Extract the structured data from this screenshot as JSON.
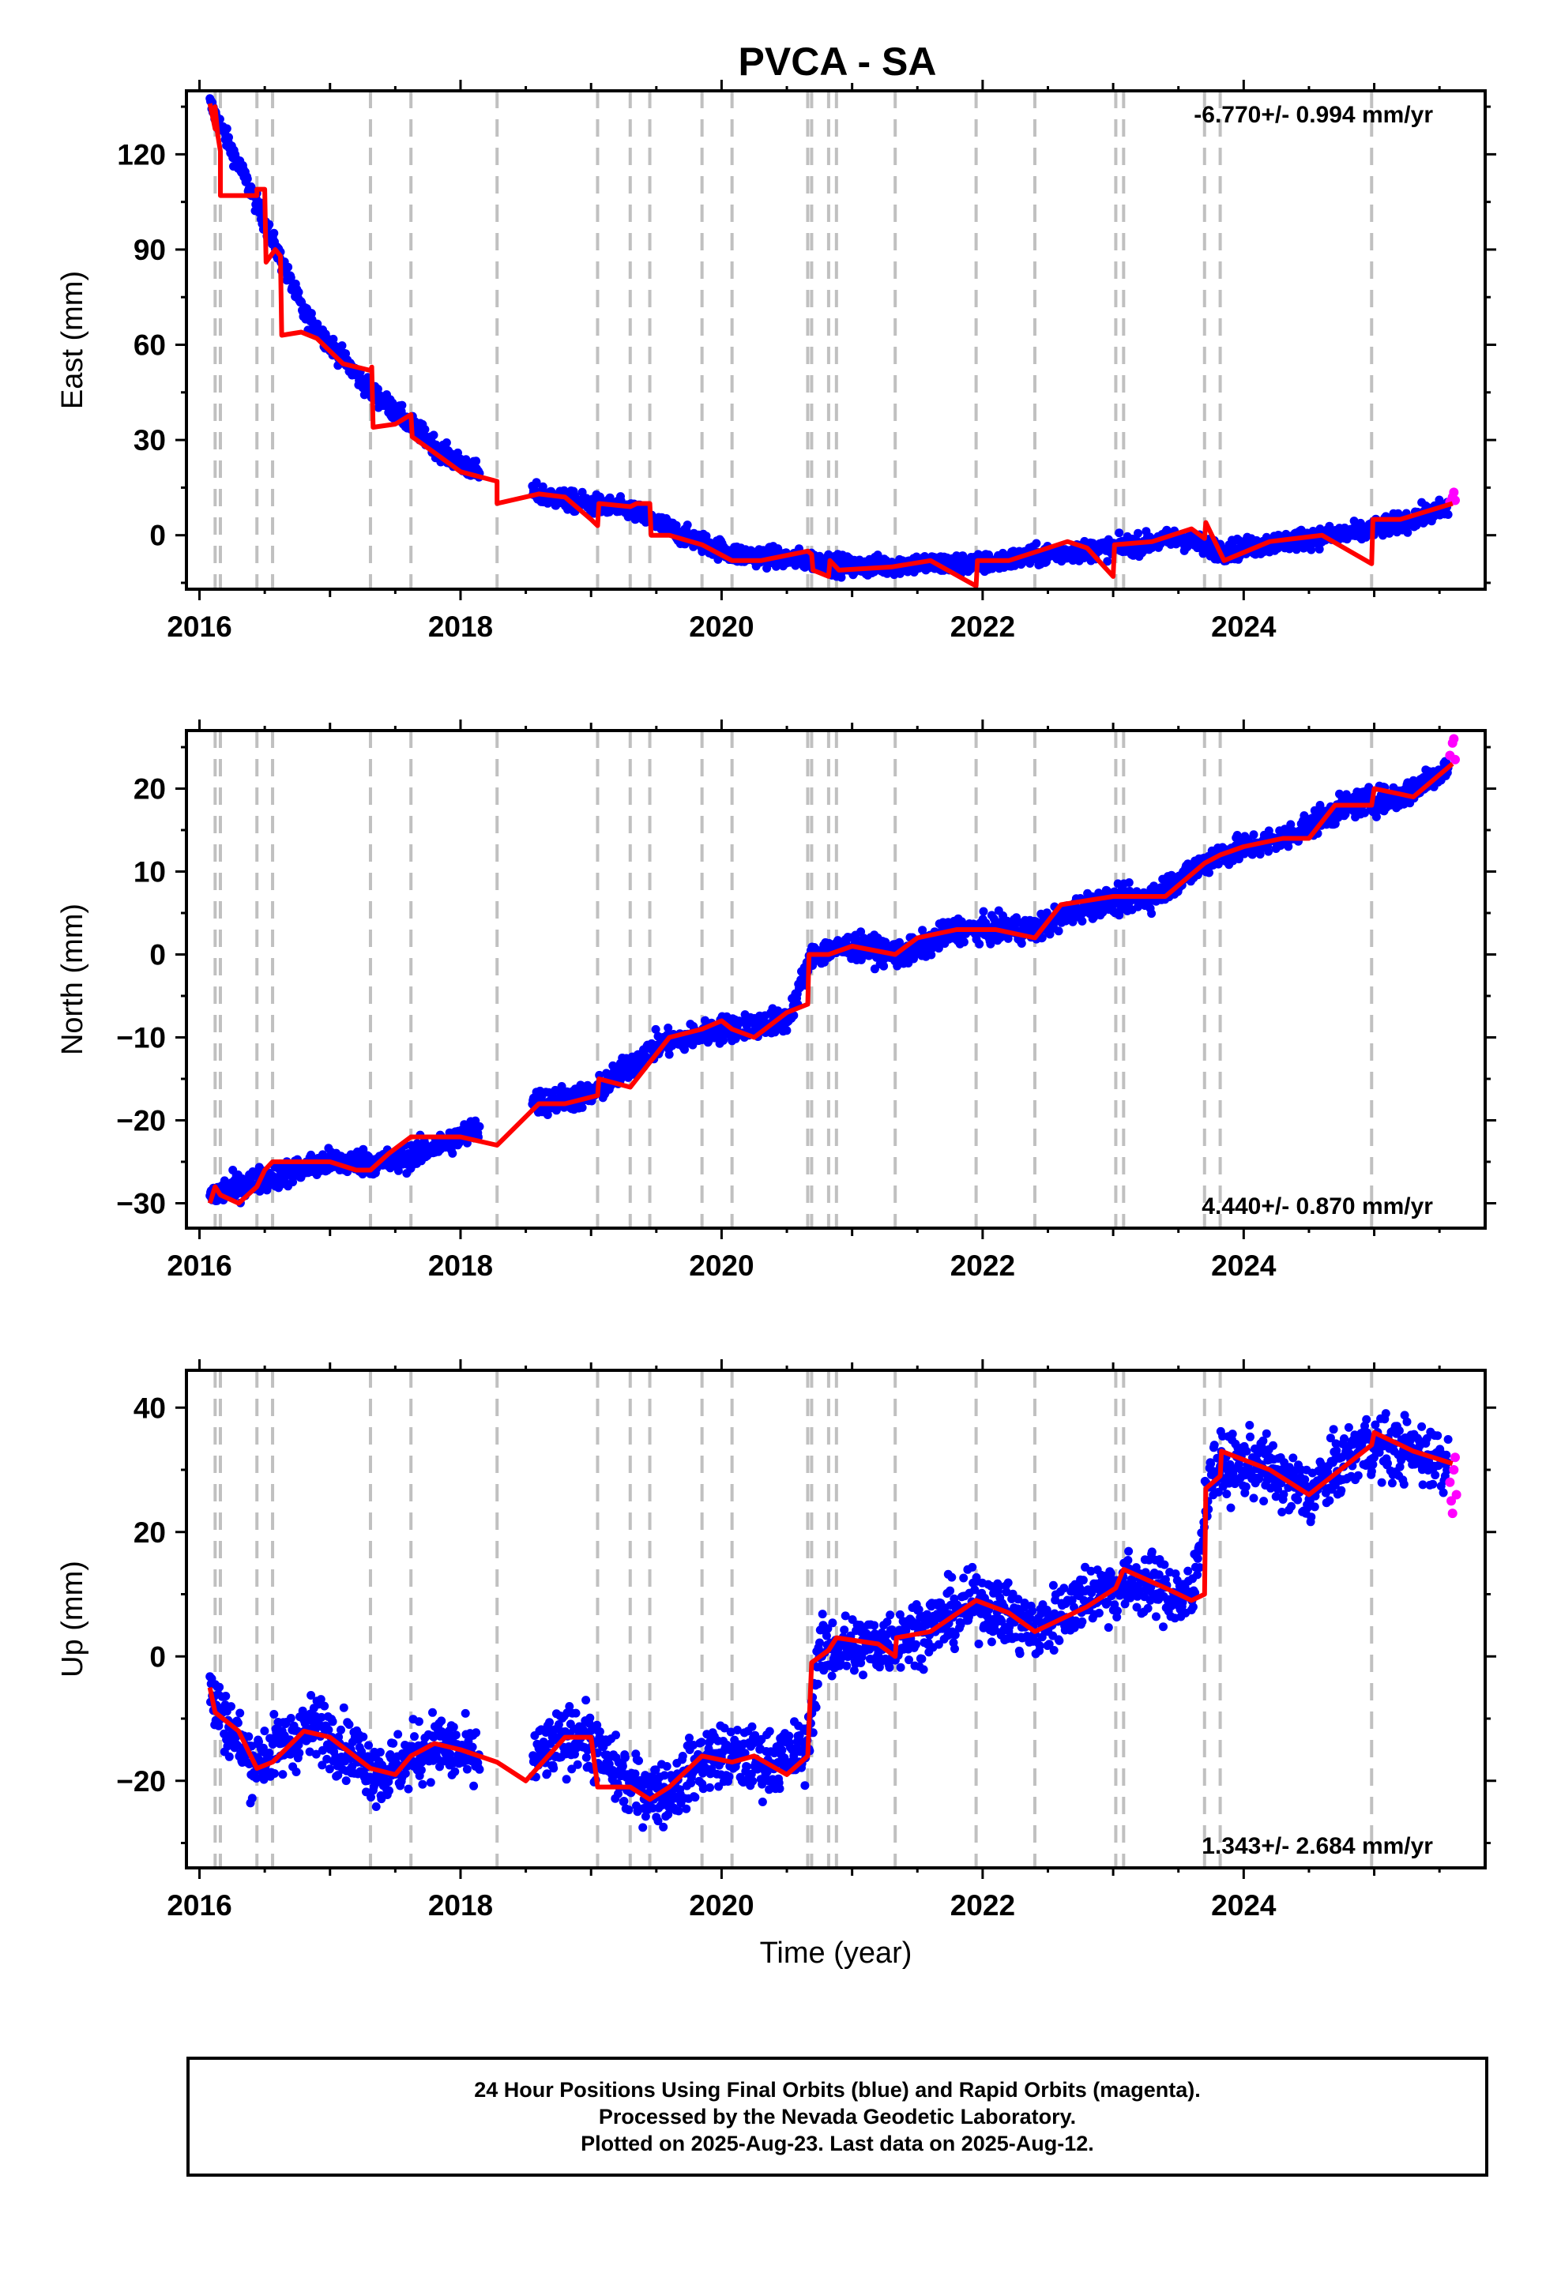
{
  "figure": {
    "title": "PVCA - SA",
    "xlabel": "Time (year)",
    "x_ticks": [
      "2016",
      "2018",
      "2020",
      "2022",
      "2024"
    ],
    "colors": {
      "final": "#0000ff",
      "rapid": "#ff00ff",
      "model": "#ff0000",
      "offset_lines": "#c0c0c0"
    }
  },
  "caption": {
    "line1": "24 Hour Positions Using Final Orbits (blue) and Rapid Orbits (magenta).",
    "line2": "Processed by the Nevada Geodetic Laboratory.",
    "line3": "Plotted on 2025-Aug-23. Last data on 2025-Aug-12."
  },
  "chart_data": [
    {
      "type": "scatter",
      "component": "east",
      "ylabel": "East (mm)",
      "rate_label": "-6.770+/- 0.994 mm/yr",
      "xlim": [
        2015.9,
        2025.85
      ],
      "ylim": [
        -17,
        140
      ],
      "y_ticks": [
        0,
        30,
        60,
        90,
        120
      ],
      "offset_epochs": [
        2016.12,
        2016.16,
        2016.44,
        2016.56,
        2017.31,
        2017.62,
        2018.28,
        2019.05,
        2019.3,
        2019.45,
        2019.85,
        2020.08,
        2020.66,
        2020.69,
        2020.82,
        2020.88,
        2021.33,
        2021.95,
        2022.4,
        2023.02,
        2023.08,
        2023.7,
        2023.82,
        2024.98
      ],
      "series": [
        {
          "name": "Final Orbits",
          "color": "#0000ff"
        },
        {
          "name": "Rapid Orbits",
          "color": "#ff00ff"
        },
        {
          "name": "Model",
          "color": "#ff0000"
        }
      ],
      "trend_knots": [
        [
          2016.08,
          136
        ],
        [
          2016.4,
          108
        ],
        [
          2016.8,
          70
        ],
        [
          2017.3,
          46
        ],
        [
          2017.9,
          25
        ],
        [
          2018.3,
          16
        ],
        [
          2018.8,
          11
        ],
        [
          2019.3,
          8
        ],
        [
          2019.7,
          0
        ],
        [
          2020.1,
          -6
        ],
        [
          2020.7,
          -8
        ],
        [
          2021.0,
          -10
        ],
        [
          2021.5,
          -9
        ],
        [
          2022.0,
          -9
        ],
        [
          2022.5,
          -6
        ],
        [
          2023.0,
          -4
        ],
        [
          2023.5,
          -1
        ],
        [
          2023.85,
          -5
        ],
        [
          2024.3,
          -2
        ],
        [
          2024.9,
          1
        ],
        [
          2025.2,
          4
        ],
        [
          2025.6,
          9
        ]
      ],
      "noise": 2.2,
      "rapid_points": [
        [
          2025.58,
          10.5
        ],
        [
          2025.6,
          12
        ],
        [
          2025.61,
          13.5
        ],
        [
          2025.62,
          11
        ]
      ],
      "model_path": [
        [
          2016.08,
          136
        ],
        [
          2016.12,
          128
        ],
        [
          2016.12,
          135
        ],
        [
          2016.14,
          126
        ],
        [
          2016.16,
          121
        ],
        [
          2016.16,
          107
        ],
        [
          2016.44,
          107
        ],
        [
          2016.44,
          109
        ],
        [
          2016.5,
          109
        ],
        [
          2016.51,
          86
        ],
        [
          2016.58,
          90
        ],
        [
          2016.62,
          88
        ],
        [
          2016.63,
          63
        ],
        [
          2016.78,
          64
        ],
        [
          2016.9,
          62
        ],
        [
          2017.0,
          58
        ],
        [
          2017.1,
          54
        ],
        [
          2017.3,
          52
        ],
        [
          2017.31,
          52
        ],
        [
          2017.32,
          53
        ],
        [
          2017.33,
          34
        ],
        [
          2017.5,
          35
        ],
        [
          2017.62,
          38
        ],
        [
          2017.63,
          31
        ],
        [
          2017.8,
          26
        ],
        [
          2018.0,
          20
        ],
        [
          2018.28,
          17
        ],
        [
          2018.28,
          10
        ],
        [
          2018.6,
          13
        ],
        [
          2018.8,
          12
        ],
        [
          2019.0,
          5
        ],
        [
          2019.05,
          3
        ],
        [
          2019.06,
          10
        ],
        [
          2019.3,
          9
        ],
        [
          2019.35,
          10
        ],
        [
          2019.45,
          10
        ],
        [
          2019.46,
          0
        ],
        [
          2019.6,
          0
        ],
        [
          2019.85,
          -3
        ],
        [
          2020.08,
          -8
        ],
        [
          2020.3,
          -8
        ],
        [
          2020.66,
          -5
        ],
        [
          2020.69,
          -6
        ],
        [
          2020.7,
          -11
        ],
        [
          2020.82,
          -13
        ],
        [
          2020.83,
          -8
        ],
        [
          2020.9,
          -11
        ],
        [
          2021.3,
          -10
        ],
        [
          2021.6,
          -8
        ],
        [
          2021.95,
          -16
        ],
        [
          2021.96,
          -8
        ],
        [
          2022.2,
          -8
        ],
        [
          2022.5,
          -4
        ],
        [
          2022.65,
          -2
        ],
        [
          2022.8,
          -4
        ],
        [
          2023.0,
          -13
        ],
        [
          2023.01,
          -3
        ],
        [
          2023.3,
          -2
        ],
        [
          2023.6,
          2
        ],
        [
          2023.7,
          -1
        ],
        [
          2023.71,
          4
        ],
        [
          2023.85,
          -8
        ],
        [
          2024.2,
          -2
        ],
        [
          2024.6,
          0
        ],
        [
          2024.98,
          -9
        ],
        [
          2024.99,
          5
        ],
        [
          2025.2,
          5
        ],
        [
          2025.6,
          10
        ]
      ]
    },
    {
      "type": "scatter",
      "component": "north",
      "ylabel": "North (mm)",
      "rate_label": "4.440+/- 0.870 mm/yr",
      "xlim": [
        2015.9,
        2025.85
      ],
      "ylim": [
        -33,
        27
      ],
      "y_ticks": [
        -30,
        -20,
        -10,
        0,
        10,
        20
      ],
      "offset_epochs": [
        2016.12,
        2016.16,
        2016.44,
        2016.56,
        2017.31,
        2017.62,
        2018.28,
        2019.05,
        2019.3,
        2019.45,
        2019.85,
        2020.08,
        2020.66,
        2020.69,
        2020.82,
        2020.88,
        2021.33,
        2021.95,
        2022.4,
        2023.02,
        2023.08,
        2023.7,
        2023.82,
        2024.98
      ],
      "series": [
        {
          "name": "Final Orbits",
          "color": "#0000ff"
        },
        {
          "name": "Rapid Orbits",
          "color": "#ff00ff"
        },
        {
          "name": "Model",
          "color": "#ff0000"
        }
      ],
      "trend_knots": [
        [
          2016.08,
          -29
        ],
        [
          2016.5,
          -27
        ],
        [
          2017.0,
          -25
        ],
        [
          2017.5,
          -25
        ],
        [
          2018.0,
          -22
        ],
        [
          2018.5,
          -18
        ],
        [
          2019.0,
          -17
        ],
        [
          2019.5,
          -11
        ],
        [
          2020.0,
          -9
        ],
        [
          2020.5,
          -8
        ],
        [
          2020.7,
          0
        ],
        [
          2021.0,
          1
        ],
        [
          2021.4,
          0
        ],
        [
          2021.8,
          3
        ],
        [
          2022.4,
          3
        ],
        [
          2022.8,
          6
        ],
        [
          2023.3,
          7
        ],
        [
          2023.8,
          12
        ],
        [
          2024.3,
          14
        ],
        [
          2024.8,
          18
        ],
        [
          2025.2,
          19
        ],
        [
          2025.6,
          23
        ]
      ],
      "noise": 1.1,
      "rapid_points": [
        [
          2025.58,
          24
        ],
        [
          2025.6,
          25.5
        ],
        [
          2025.61,
          26
        ],
        [
          2025.62,
          23.5
        ]
      ],
      "model_path": [
        [
          2016.08,
          -30
        ],
        [
          2016.12,
          -28
        ],
        [
          2016.16,
          -29
        ],
        [
          2016.3,
          -30
        ],
        [
          2016.44,
          -28
        ],
        [
          2016.5,
          -26
        ],
        [
          2016.56,
          -25
        ],
        [
          2016.8,
          -25
        ],
        [
          2017.0,
          -25
        ],
        [
          2017.2,
          -26
        ],
        [
          2017.31,
          -26
        ],
        [
          2017.45,
          -24
        ],
        [
          2017.62,
          -22
        ],
        [
          2017.8,
          -22
        ],
        [
          2018.0,
          -22
        ],
        [
          2018.28,
          -23
        ],
        [
          2018.6,
          -18
        ],
        [
          2018.8,
          -18
        ],
        [
          2019.05,
          -17
        ],
        [
          2019.06,
          -15
        ],
        [
          2019.3,
          -16
        ],
        [
          2019.45,
          -13
        ],
        [
          2019.6,
          -10
        ],
        [
          2019.85,
          -9
        ],
        [
          2020.0,
          -8
        ],
        [
          2020.08,
          -9
        ],
        [
          2020.25,
          -10
        ],
        [
          2020.5,
          -7
        ],
        [
          2020.66,
          -6
        ],
        [
          2020.67,
          0
        ],
        [
          2020.82,
          0
        ],
        [
          2021.0,
          1
        ],
        [
          2021.33,
          0
        ],
        [
          2021.5,
          2
        ],
        [
          2021.8,
          3
        ],
        [
          2022.1,
          3
        ],
        [
          2022.4,
          2
        ],
        [
          2022.6,
          6
        ],
        [
          2023.0,
          7
        ],
        [
          2023.2,
          7
        ],
        [
          2023.4,
          7
        ],
        [
          2023.7,
          11
        ],
        [
          2023.82,
          12
        ],
        [
          2024.0,
          13
        ],
        [
          2024.3,
          14
        ],
        [
          2024.5,
          14
        ],
        [
          2024.7,
          18
        ],
        [
          2024.98,
          18
        ],
        [
          2025.0,
          20
        ],
        [
          2025.3,
          19
        ],
        [
          2025.6,
          23
        ]
      ]
    },
    {
      "type": "scatter",
      "component": "up",
      "ylabel": "Up (mm)",
      "rate_label": "1.343+/- 2.684 mm/yr",
      "xlim": [
        2015.9,
        2025.85
      ],
      "ylim": [
        -34,
        46
      ],
      "y_ticks": [
        -20,
        0,
        20,
        40
      ],
      "offset_epochs": [
        2016.12,
        2016.16,
        2016.44,
        2016.56,
        2017.31,
        2017.62,
        2018.28,
        2019.05,
        2019.3,
        2019.45,
        2019.85,
        2020.08,
        2020.66,
        2020.69,
        2020.82,
        2020.88,
        2021.33,
        2021.95,
        2022.4,
        2023.02,
        2023.08,
        2023.7,
        2023.82,
        2024.98
      ],
      "series": [
        {
          "name": "Final Orbits",
          "color": "#0000ff"
        },
        {
          "name": "Rapid Orbits",
          "color": "#ff00ff"
        },
        {
          "name": "Model",
          "color": "#ff0000"
        }
      ],
      "trend_knots": [
        [
          2016.08,
          -6
        ],
        [
          2016.4,
          -17
        ],
        [
          2016.9,
          -11
        ],
        [
          2017.4,
          -19
        ],
        [
          2017.8,
          -14
        ],
        [
          2018.4,
          -19
        ],
        [
          2018.9,
          -12
        ],
        [
          2019.3,
          -21
        ],
        [
          2019.6,
          -22
        ],
        [
          2019.9,
          -16
        ],
        [
          2020.4,
          -17
        ],
        [
          2020.65,
          -15
        ],
        [
          2020.75,
          1
        ],
        [
          2021.2,
          2
        ],
        [
          2021.6,
          5
        ],
        [
          2022.0,
          9
        ],
        [
          2022.4,
          4
        ],
        [
          2022.8,
          10
        ],
        [
          2023.2,
          12
        ],
        [
          2023.6,
          9
        ],
        [
          2023.75,
          30
        ],
        [
          2024.1,
          31
        ],
        [
          2024.5,
          26
        ],
        [
          2024.9,
          34
        ],
        [
          2025.3,
          33
        ],
        [
          2025.6,
          31
        ]
      ],
      "noise": 3.6,
      "rapid_points": [
        [
          2025.58,
          28
        ],
        [
          2025.59,
          25
        ],
        [
          2025.6,
          23
        ],
        [
          2025.61,
          30
        ],
        [
          2025.62,
          32
        ],
        [
          2025.63,
          26
        ]
      ],
      "model_path": [
        [
          2016.08,
          -5
        ],
        [
          2016.12,
          -9
        ],
        [
          2016.3,
          -12
        ],
        [
          2016.44,
          -18
        ],
        [
          2016.56,
          -17
        ],
        [
          2016.8,
          -12
        ],
        [
          2017.0,
          -13
        ],
        [
          2017.31,
          -18
        ],
        [
          2017.5,
          -19
        ],
        [
          2017.62,
          -16
        ],
        [
          2017.8,
          -14
        ],
        [
          2018.0,
          -15
        ],
        [
          2018.28,
          -17
        ],
        [
          2018.5,
          -20
        ],
        [
          2018.8,
          -13
        ],
        [
          2019.0,
          -13
        ],
        [
          2019.05,
          -21
        ],
        [
          2019.3,
          -21
        ],
        [
          2019.45,
          -23
        ],
        [
          2019.6,
          -21
        ],
        [
          2019.85,
          -16
        ],
        [
          2020.08,
          -17
        ],
        [
          2020.25,
          -16
        ],
        [
          2020.5,
          -19
        ],
        [
          2020.66,
          -16
        ],
        [
          2020.69,
          -1
        ],
        [
          2020.82,
          1
        ],
        [
          2020.88,
          3
        ],
        [
          2021.2,
          2
        ],
        [
          2021.33,
          0
        ],
        [
          2021.34,
          3
        ],
        [
          2021.6,
          4
        ],
        [
          2021.95,
          9
        ],
        [
          2022.2,
          7
        ],
        [
          2022.4,
          4
        ],
        [
          2022.8,
          8
        ],
        [
          2023.02,
          11
        ],
        [
          2023.08,
          14
        ],
        [
          2023.4,
          11
        ],
        [
          2023.6,
          9
        ],
        [
          2023.7,
          10
        ],
        [
          2023.71,
          27
        ],
        [
          2023.82,
          29
        ],
        [
          2023.83,
          33
        ],
        [
          2024.2,
          30
        ],
        [
          2024.5,
          26
        ],
        [
          2024.98,
          34
        ],
        [
          2025.0,
          36
        ],
        [
          2025.3,
          33
        ],
        [
          2025.6,
          31
        ]
      ]
    }
  ]
}
